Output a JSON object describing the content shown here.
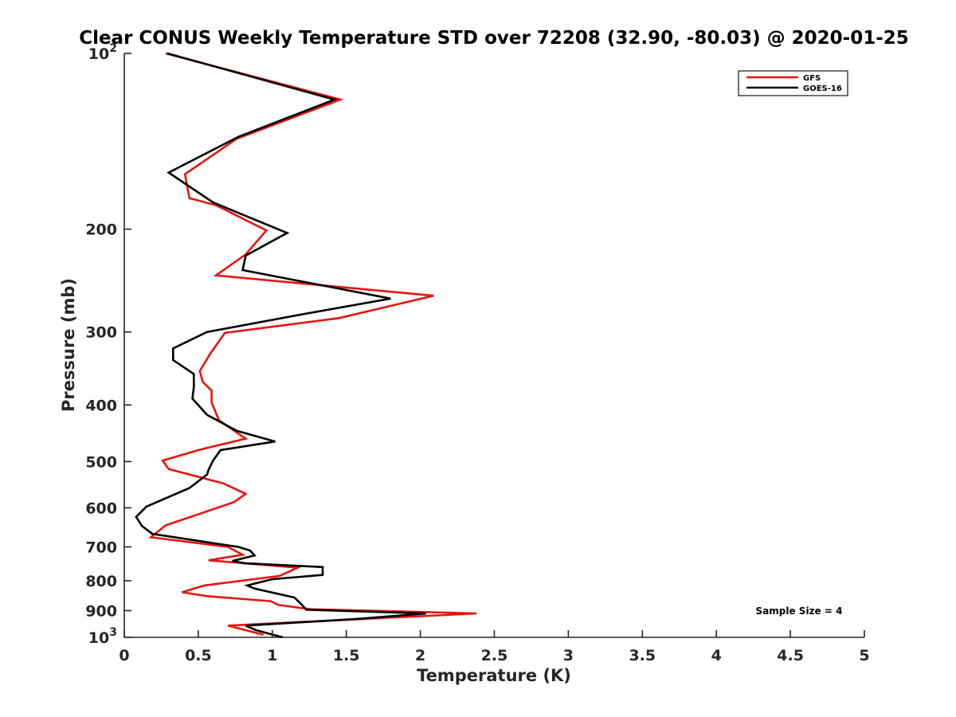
{
  "chart_data": {
    "type": "line",
    "title": "Clear CONUS Weekly Temperature STD over 72208 (32.90, -80.03) @ 2020-01-25",
    "xlabel": "Temperature (K)",
    "ylabel": "Pressure (mb)",
    "xlim": [
      0,
      5
    ],
    "ylim": [
      100,
      1000
    ],
    "y_scale": "log",
    "y_reversed": true,
    "grid": false,
    "legend_position": "top-right",
    "x_ticks": [
      "0",
      "0.5",
      "1",
      "1.5",
      "2",
      "2.5",
      "3",
      "3.5",
      "4",
      "4.5",
      "5"
    ],
    "x_tick_values": [
      0,
      0.5,
      1,
      1.5,
      2,
      2.5,
      3,
      3.5,
      4,
      4.5,
      5
    ],
    "y_ticks": [
      {
        "value": 100,
        "base": "10",
        "exp": "2"
      },
      {
        "value": 200,
        "label": "200"
      },
      {
        "value": 300,
        "label": "300"
      },
      {
        "value": 400,
        "label": "400"
      },
      {
        "value": 500,
        "label": "500"
      },
      {
        "value": 600,
        "label": "600"
      },
      {
        "value": 700,
        "label": "700"
      },
      {
        "value": 800,
        "label": "800"
      },
      {
        "value": 900,
        "label": "900"
      },
      {
        "value": 1000,
        "base": "10",
        "exp": "3"
      }
    ],
    "annotation": "Sample Size = 4",
    "series": [
      {
        "name": "GFS",
        "color": "#e8130f",
        "points": [
          [
            0.28,
            100
          ],
          [
            1.46,
            120
          ],
          [
            0.76,
            140
          ],
          [
            0.41,
            161
          ],
          [
            0.44,
            177
          ],
          [
            0.62,
            182
          ],
          [
            0.96,
            201
          ],
          [
            0.82,
            221
          ],
          [
            0.62,
            240
          ],
          [
            2.09,
            260
          ],
          [
            1.45,
            284
          ],
          [
            0.68,
            301
          ],
          [
            0.58,
            327
          ],
          [
            0.51,
            350
          ],
          [
            0.53,
            365
          ],
          [
            0.59,
            378
          ],
          [
            0.59,
            396
          ],
          [
            0.64,
            425
          ],
          [
            0.82,
            457
          ],
          [
            0.5,
            478
          ],
          [
            0.26,
            498
          ],
          [
            0.3,
            515
          ],
          [
            0.67,
            545
          ],
          [
            0.82,
            568
          ],
          [
            0.74,
            587
          ],
          [
            0.28,
            643
          ],
          [
            0.18,
            674
          ],
          [
            0.7,
            700
          ],
          [
            0.8,
            722
          ],
          [
            0.57,
            738
          ],
          [
            1.17,
            760
          ],
          [
            1.05,
            785
          ],
          [
            0.54,
            815
          ],
          [
            0.39,
            837
          ],
          [
            0.56,
            850
          ],
          [
            0.99,
            867
          ],
          [
            1.04,
            880
          ],
          [
            1.26,
            895
          ],
          [
            2.38,
            910
          ],
          [
            0.7,
            955
          ],
          [
            0.94,
            990
          ]
        ]
      },
      {
        "name": "GOES-16",
        "color": "#000000",
        "points": [
          [
            0.29,
            100
          ],
          [
            1.42,
            120
          ],
          [
            0.77,
            139
          ],
          [
            0.3,
            160
          ],
          [
            0.6,
            180
          ],
          [
            1.1,
            203
          ],
          [
            0.82,
            222
          ],
          [
            0.8,
            235
          ],
          [
            1.8,
            263
          ],
          [
            1.23,
            279
          ],
          [
            0.56,
            300
          ],
          [
            0.33,
            320
          ],
          [
            0.33,
            335
          ],
          [
            0.47,
            354
          ],
          [
            0.47,
            373
          ],
          [
            0.46,
            390
          ],
          [
            0.56,
            416
          ],
          [
            0.76,
            443
          ],
          [
            1.02,
            462
          ],
          [
            0.65,
            478
          ],
          [
            0.6,
            498
          ],
          [
            0.57,
            516
          ],
          [
            0.56,
            526
          ],
          [
            0.44,
            555
          ],
          [
            0.15,
            597
          ],
          [
            0.08,
            622
          ],
          [
            0.12,
            645
          ],
          [
            0.19,
            665
          ],
          [
            0.77,
            700
          ],
          [
            0.85,
            710
          ],
          [
            0.88,
            724
          ],
          [
            0.73,
            740
          ],
          [
            0.82,
            747
          ],
          [
            1.34,
            758
          ],
          [
            1.34,
            782
          ],
          [
            1.0,
            795
          ],
          [
            0.83,
            815
          ],
          [
            0.88,
            825
          ],
          [
            1.15,
            855
          ],
          [
            1.2,
            880
          ],
          [
            1.23,
            897
          ],
          [
            2.04,
            910
          ],
          [
            1.57,
            930
          ],
          [
            0.82,
            955
          ],
          [
            0.89,
            972
          ],
          [
            1.07,
            1000
          ]
        ]
      }
    ]
  }
}
